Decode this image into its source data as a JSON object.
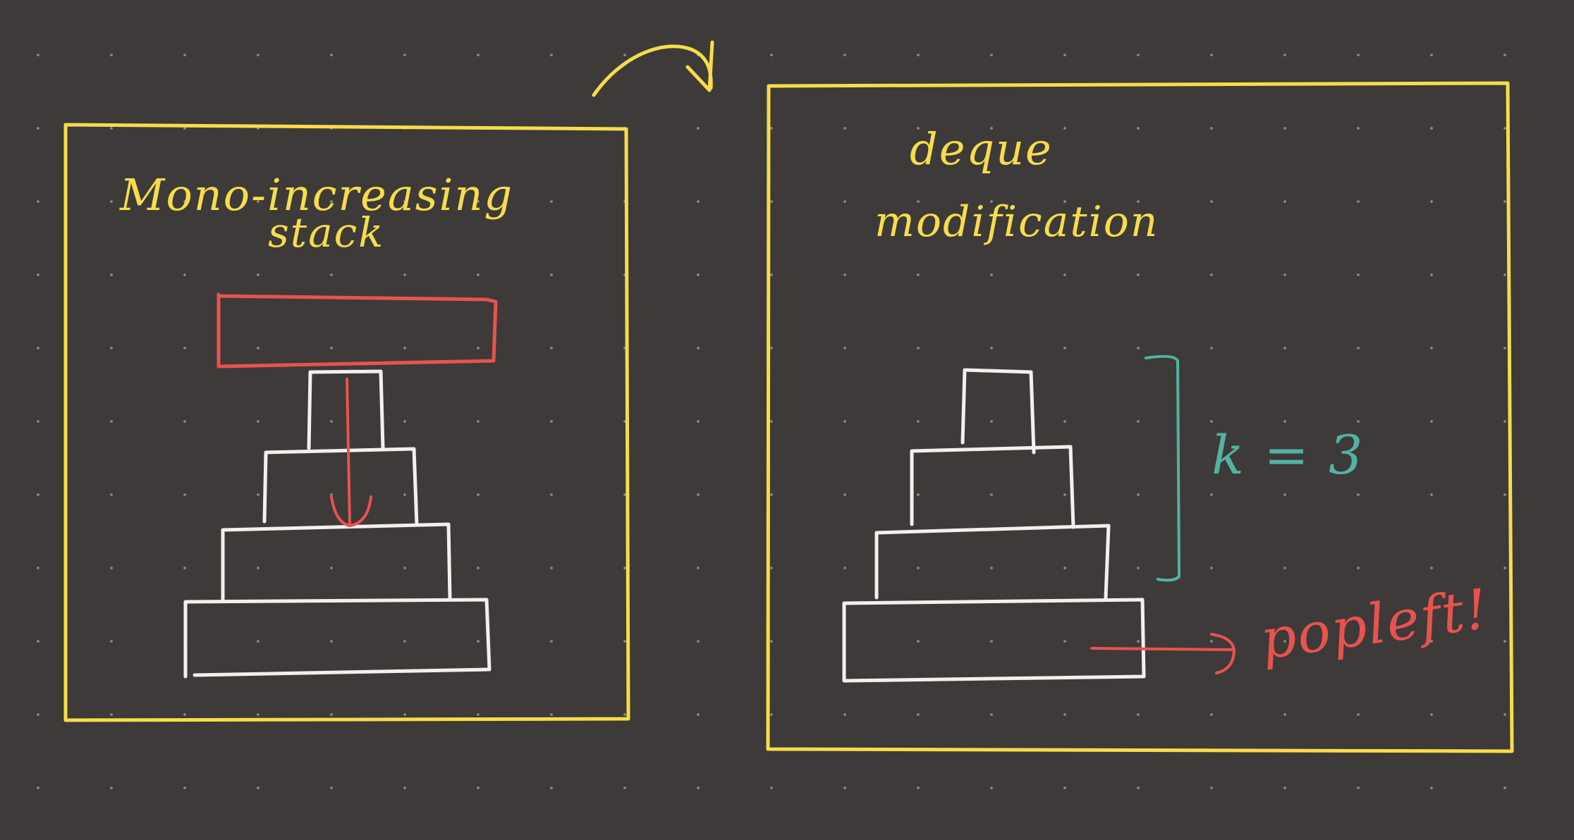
{
  "colors": {
    "background": "#3d3a39",
    "grid_dot": "#8e8a86",
    "frame": "#f7dc4b",
    "block": "#f2f0ec",
    "highlight": "#e8534f",
    "bracket": "#52b3a3"
  },
  "left_panel": {
    "title_line1": "Mono-increasing",
    "title_line2": "stack"
  },
  "right_panel": {
    "title_line1": "deque",
    "title_line2": "modification",
    "window_label": "k = 3",
    "action_label": "popleft!"
  },
  "icons": {
    "transition_arrow": "curved-arrow-icon",
    "push_arrow": "down-arrow-icon",
    "pop_arrow": "right-arrow-icon"
  }
}
